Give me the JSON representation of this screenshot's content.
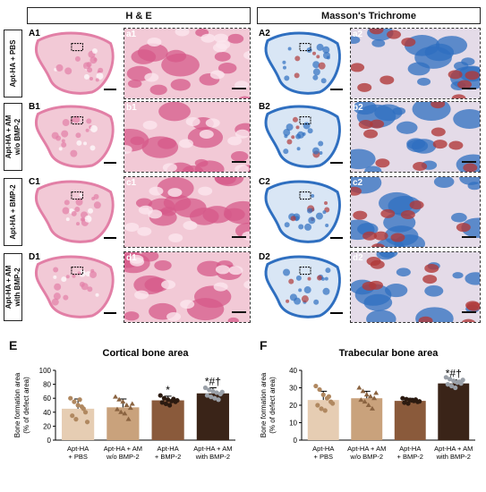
{
  "headers": {
    "he": "H & E",
    "mt": "Masson's Trichrome"
  },
  "rows": [
    {
      "label_lines": [
        "Apt-HA + PBS"
      ],
      "left_label": "A1",
      "zoom_he": "a1",
      "right_label": "A2",
      "zoom_mt": "a2"
    },
    {
      "label_lines": [
        "Apt-HA + AM",
        "w/o BMP-2"
      ],
      "left_label": "B1",
      "zoom_he": "b1",
      "right_label": "B2",
      "zoom_mt": "b2"
    },
    {
      "label_lines": [
        "Apt-HA + BMP-2"
      ],
      "left_label": "C1",
      "zoom_he": "c1",
      "right_label": "C2",
      "zoom_mt": "c2"
    },
    {
      "label_lines": [
        "Apt-HA + AM",
        "with BMP-2"
      ],
      "left_label": "D1",
      "zoom_he": "d1",
      "right_label": "D2",
      "zoom_mt": "d2"
    }
  ],
  "colors": {
    "he_bg": "#f2c9d6",
    "he_tissue": "#e27fa6",
    "mt_bg": "#d9e6f5",
    "mt_tissue": "#2f6fc0",
    "mt_red": "#b03a3a"
  },
  "chart_data": [
    {
      "panel": "E",
      "type": "bar",
      "title": "Cortical bone area",
      "ylabel": "Bone formation area\n(% of defect area)",
      "ylim": [
        0,
        100
      ],
      "yticks": [
        0,
        20,
        40,
        60,
        80,
        100
      ],
      "categories": [
        [
          "Apt-HA",
          "+ PBS"
        ],
        [
          "Apt-HA + AM",
          "w/o BMP-2"
        ],
        [
          "Apt-HA",
          "+ BMP-2"
        ],
        [
          "Apt-HA + AM",
          "with BMP-2"
        ]
      ],
      "values": [
        45,
        47,
        57,
        67
      ],
      "errors": [
        14,
        12,
        6,
        8
      ],
      "colors": [
        "#e6cdb3",
        "#c9a27c",
        "#8a5a3b",
        "#3a2418"
      ],
      "points": [
        [
          60,
          55,
          50,
          48,
          40,
          35,
          30,
          58,
          45,
          26
        ],
        [
          62,
          58,
          55,
          50,
          46,
          44,
          40,
          38,
          30,
          52
        ],
        [
          64,
          60,
          58,
          56,
          55,
          54,
          52,
          50,
          59,
          57
        ],
        [
          75,
          72,
          70,
          68,
          66,
          64,
          62,
          60,
          58,
          69
        ]
      ],
      "annotations": [
        "",
        "",
        "*",
        "*#†"
      ]
    },
    {
      "panel": "F",
      "type": "bar",
      "title": "Trabecular bone area",
      "ylabel": "Bone formation area\n(% of defect area)",
      "ylim": [
        0,
        40
      ],
      "yticks": [
        0,
        10,
        20,
        30,
        40
      ],
      "categories": [
        [
          "Apt-HA",
          "+ PBS"
        ],
        [
          "Apt-HA + AM",
          "w/o BMP-2"
        ],
        [
          "Apt-HA",
          "+ BMP-2"
        ],
        [
          "Apt-HA + AM",
          "with BMP-2"
        ]
      ],
      "values": [
        23,
        24,
        22.5,
        32.5
      ],
      "errors": [
        5,
        4,
        1.5,
        2
      ],
      "colors": [
        "#e6cdb3",
        "#c9a27c",
        "#8a5a3b",
        "#3a2418"
      ],
      "points": [
        [
          31,
          29,
          26,
          24,
          22,
          20,
          18,
          17,
          25,
          21
        ],
        [
          30,
          28,
          26,
          25,
          24,
          23,
          22,
          20,
          18,
          27
        ],
        [
          24,
          23.5,
          23,
          22.5,
          22,
          21.5,
          21,
          22.8,
          23.2,
          22.2
        ],
        [
          36,
          35,
          34,
          33,
          32.5,
          32,
          31,
          30,
          33.5,
          34.5
        ]
      ],
      "annotations": [
        "",
        "",
        "",
        "*#†"
      ]
    }
  ]
}
